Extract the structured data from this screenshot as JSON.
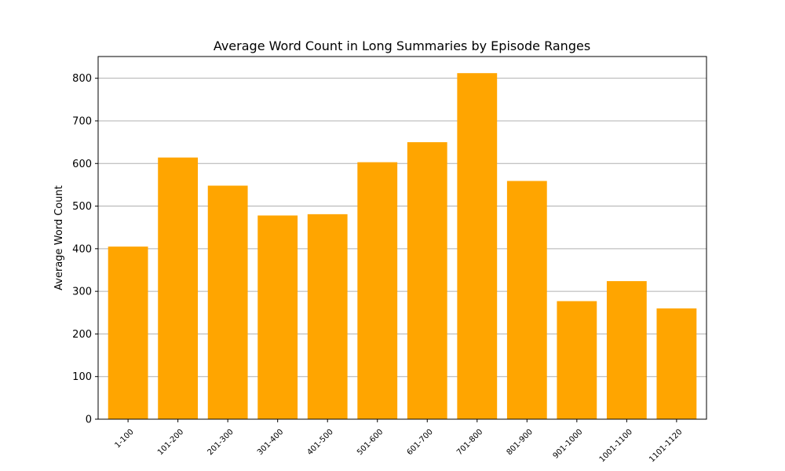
{
  "chart_data": {
    "type": "bar",
    "title": "Average Word Count in Long Summaries by Episode Ranges",
    "xlabel": "",
    "ylabel": "Average Word Count",
    "categories": [
      "1-100",
      "101-200",
      "201-300",
      "301-400",
      "401-500",
      "501-600",
      "601-700",
      "701-800",
      "801-900",
      "901-1000",
      "1001-1100",
      "1101-1120"
    ],
    "values": [
      405,
      614,
      548,
      478,
      481,
      603,
      650,
      812,
      559,
      277,
      324,
      260
    ],
    "ylim": [
      0,
      851
    ],
    "yticks": [
      0,
      100,
      200,
      300,
      400,
      500,
      600,
      700,
      800
    ],
    "grid": "y",
    "bar_color": "#ffa500"
  }
}
